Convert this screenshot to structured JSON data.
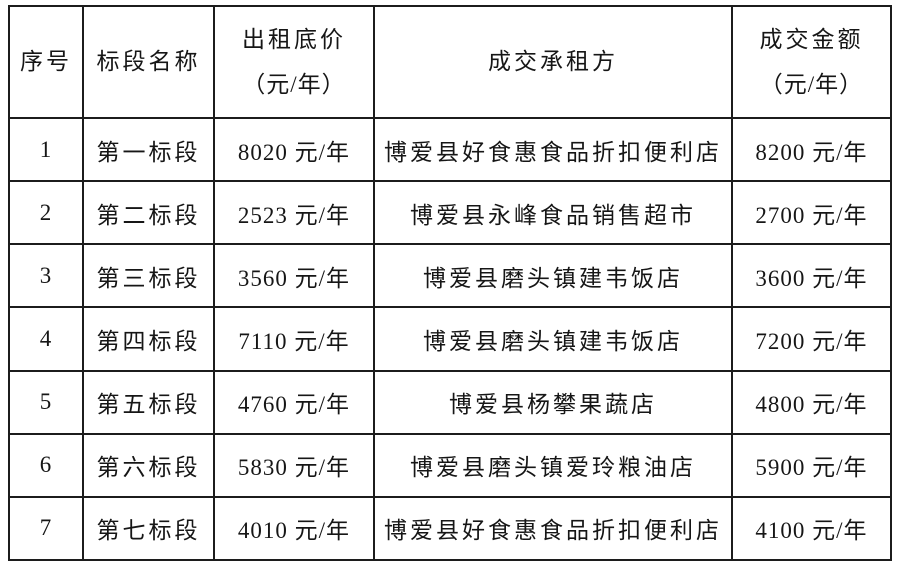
{
  "colors": {
    "background": "#ffffff",
    "border": "#1c1c1c",
    "text": "#161616"
  },
  "table": {
    "columns": [
      {
        "label": "序号"
      },
      {
        "label": "标段名称"
      },
      {
        "label": "出租底价",
        "sublabel": "（元/年）"
      },
      {
        "label": "成交承租方"
      },
      {
        "label": "成交金额",
        "sublabel": "（元/年）"
      }
    ],
    "rows": [
      [
        "1",
        "第一标段",
        "8020 元/年",
        "博爱县好食惠食品折扣便利店",
        "8200 元/年"
      ],
      [
        "2",
        "第二标段",
        "2523 元/年",
        "博爱县永峰食品销售超市",
        "2700 元/年"
      ],
      [
        "3",
        "第三标段",
        "3560 元/年",
        "博爱县磨头镇建韦饭店",
        "3600 元/年"
      ],
      [
        "4",
        "第四标段",
        "7110 元/年",
        "博爱县磨头镇建韦饭店",
        "7200 元/年"
      ],
      [
        "5",
        "第五标段",
        "4760 元/年",
        "博爱县杨攀果蔬店",
        "4800 元/年"
      ],
      [
        "6",
        "第六标段",
        "5830 元/年",
        "博爱县磨头镇爱玲粮油店",
        "5900 元/年"
      ],
      [
        "7",
        "第七标段",
        "4010 元/年",
        "博爱县好食惠食品折扣便利店",
        "4100 元/年"
      ]
    ]
  }
}
